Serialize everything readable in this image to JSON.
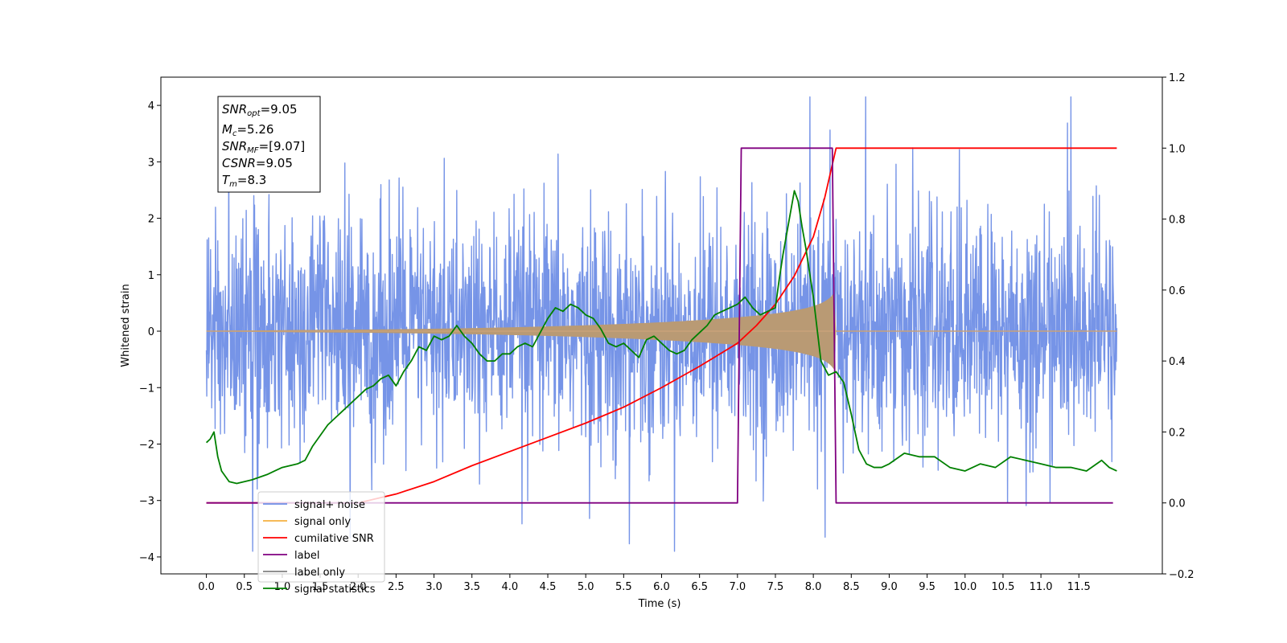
{
  "chart_data": {
    "type": "line",
    "xlabel": "Time (s)",
    "ylabel": "Whitened strain",
    "xlim": [
      -0.6,
      12.6
    ],
    "ylim": [
      -4.3,
      4.5
    ],
    "ylim_right": [
      -0.2,
      1.2
    ],
    "x_ticks": [
      0.0,
      0.5,
      1.0,
      1.5,
      2.0,
      2.5,
      3.0,
      3.5,
      4.0,
      4.5,
      5.0,
      5.5,
      6.0,
      6.5,
      7.0,
      7.5,
      8.0,
      8.5,
      9.0,
      9.5,
      10.0,
      10.5,
      11.0,
      11.5
    ],
    "x_tick_labels": [
      "0.0",
      "0.5",
      "1.0",
      "1.5",
      "2.0",
      "2.5",
      "3.0",
      "3.5",
      "4.0",
      "4.5",
      "5.0",
      "5.5",
      "6.0",
      "6.5",
      "7.0",
      "7.5",
      "8.0",
      "8.5",
      "9.0",
      "9.5",
      "10.0",
      "10.5",
      "11.0",
      "11.5"
    ],
    "y_ticks": [
      -4,
      -3,
      -2,
      -1,
      0,
      1,
      2,
      3,
      4
    ],
    "y_tick_labels": [
      "−4",
      "−3",
      "−2",
      "−1",
      "0",
      "1",
      "2",
      "3",
      "4"
    ],
    "y_right_ticks": [
      -0.2,
      0.0,
      0.2,
      0.4,
      0.6,
      0.8,
      1.0,
      1.2
    ],
    "y_right_tick_labels": [
      "−0.2",
      "0.0",
      "0.2",
      "0.4",
      "0.6",
      "0.8",
      "1.0",
      "1.2"
    ],
    "grid": false,
    "legend_position": "lower-left",
    "info_box": {
      "snr_opt": "=9.05",
      "mc": "=5.26",
      "snr_mf": "=[9.07]",
      "csnr": "=9.05",
      "tm": "=8.3"
    },
    "series": [
      {
        "name": "signal+ noise",
        "color": "#6f8ee6",
        "axis": "left",
        "kind": "noise",
        "x_range": [
          0.0,
          12.0
        ],
        "amplitude_sigma": 1.0
      },
      {
        "name": "signal only",
        "color": "#f5b041",
        "axis": "left",
        "kind": "chirp",
        "x_range": [
          0.0,
          12.0
        ],
        "merger_time": 8.3,
        "peak_amplitude": 0.75
      },
      {
        "name": "cumilative SNR",
        "color": "#ff0000",
        "axis": "right",
        "x": [
          0.0,
          0.5,
          1.0,
          1.5,
          2.0,
          2.5,
          3.0,
          3.5,
          4.0,
          4.5,
          5.0,
          5.5,
          6.0,
          6.5,
          7.0,
          7.25,
          7.5,
          7.75,
          8.0,
          8.15,
          8.3,
          12.0
        ],
        "y": [
          0.0,
          0.0,
          0.0,
          0.0,
          0.0,
          0.025,
          0.06,
          0.105,
          0.145,
          0.185,
          0.225,
          0.27,
          0.325,
          0.385,
          0.45,
          0.5,
          0.56,
          0.64,
          0.75,
          0.86,
          1.0,
          1.0
        ]
      },
      {
        "name": "label",
        "color": "#800080",
        "axis": "right",
        "x": [
          0.0,
          7.0,
          7.05,
          8.25,
          8.3,
          11.95
        ],
        "y": [
          0.0,
          0.0,
          1.0,
          1.0,
          0.0,
          0.0
        ]
      },
      {
        "name": "label only",
        "color": "#808080",
        "axis": "right",
        "x": [],
        "y": []
      },
      {
        "name": "signal statistics",
        "color": "#008000",
        "axis": "right",
        "x": [
          0.0,
          0.05,
          0.1,
          0.15,
          0.2,
          0.3,
          0.4,
          0.5,
          0.6,
          0.8,
          0.9,
          1.0,
          1.2,
          1.3,
          1.4,
          1.5,
          1.6,
          1.7,
          1.8,
          1.9,
          2.0,
          2.1,
          2.2,
          2.3,
          2.4,
          2.5,
          2.6,
          2.7,
          2.8,
          2.9,
          3.0,
          3.1,
          3.2,
          3.3,
          3.4,
          3.5,
          3.6,
          3.7,
          3.8,
          3.9,
          4.0,
          4.1,
          4.2,
          4.3,
          4.4,
          4.5,
          4.6,
          4.7,
          4.8,
          4.9,
          5.0,
          5.1,
          5.2,
          5.3,
          5.4,
          5.5,
          5.6,
          5.7,
          5.8,
          5.9,
          6.0,
          6.1,
          6.2,
          6.3,
          6.4,
          6.5,
          6.6,
          6.7,
          6.8,
          6.9,
          7.0,
          7.1,
          7.2,
          7.3,
          7.4,
          7.5,
          7.55,
          7.6,
          7.7,
          7.75,
          7.8,
          7.85,
          7.9,
          8.0,
          8.1,
          8.2,
          8.3,
          8.4,
          8.5,
          8.6,
          8.7,
          8.8,
          8.9,
          9.0,
          9.2,
          9.4,
          9.6,
          9.8,
          10.0,
          10.2,
          10.4,
          10.6,
          10.8,
          11.0,
          11.2,
          11.4,
          11.6,
          11.8,
          11.9,
          12.0
        ],
        "y": [
          0.17,
          0.18,
          0.2,
          0.13,
          0.09,
          0.06,
          0.055,
          0.06,
          0.065,
          0.08,
          0.09,
          0.1,
          0.11,
          0.12,
          0.16,
          0.19,
          0.22,
          0.24,
          0.26,
          0.28,
          0.3,
          0.32,
          0.33,
          0.35,
          0.36,
          0.33,
          0.37,
          0.4,
          0.44,
          0.43,
          0.47,
          0.46,
          0.47,
          0.5,
          0.47,
          0.45,
          0.42,
          0.4,
          0.4,
          0.42,
          0.42,
          0.44,
          0.45,
          0.44,
          0.48,
          0.52,
          0.55,
          0.54,
          0.56,
          0.55,
          0.53,
          0.52,
          0.49,
          0.45,
          0.44,
          0.45,
          0.43,
          0.41,
          0.46,
          0.47,
          0.45,
          0.43,
          0.42,
          0.43,
          0.46,
          0.48,
          0.5,
          0.53,
          0.54,
          0.55,
          0.56,
          0.58,
          0.55,
          0.53,
          0.54,
          0.55,
          0.63,
          0.7,
          0.82,
          0.88,
          0.85,
          0.78,
          0.72,
          0.58,
          0.4,
          0.36,
          0.37,
          0.34,
          0.25,
          0.15,
          0.11,
          0.1,
          0.1,
          0.11,
          0.14,
          0.13,
          0.13,
          0.1,
          0.09,
          0.11,
          0.1,
          0.13,
          0.12,
          0.11,
          0.1,
          0.1,
          0.09,
          0.12,
          0.1,
          0.09
        ]
      }
    ]
  }
}
